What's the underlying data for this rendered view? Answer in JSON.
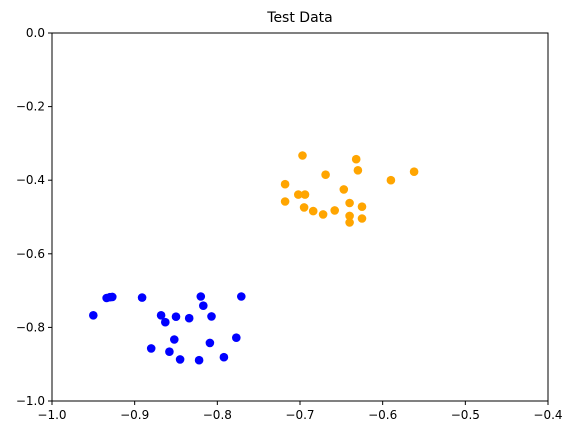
{
  "chart_data": {
    "type": "scatter",
    "title": "Test Data",
    "xlabel": "",
    "ylabel": "",
    "xlim": [
      -1.0,
      -0.4
    ],
    "ylim": [
      -1.0,
      0.0
    ],
    "x_ticks": [
      -1.0,
      -0.9,
      -0.8,
      -0.7,
      -0.6,
      -0.5,
      -0.4
    ],
    "x_tick_labels": [
      "−1.0",
      "−0.9",
      "−0.8",
      "−0.7",
      "−0.6",
      "−0.5",
      "−0.4"
    ],
    "y_ticks": [
      0.0,
      -0.2,
      -0.4,
      -0.6,
      -0.8,
      -1.0
    ],
    "y_tick_labels": [
      "0.0",
      "−0.2",
      "−0.4",
      "−0.6",
      "−0.8",
      "−1.0"
    ],
    "grid": false,
    "series": [
      {
        "color": "#0000ff",
        "points": [
          [
            -0.95,
            -0.767
          ],
          [
            -0.934,
            -0.72
          ],
          [
            -0.93,
            -0.718
          ],
          [
            -0.927,
            -0.717
          ],
          [
            -0.891,
            -0.719
          ],
          [
            -0.88,
            -0.857
          ],
          [
            -0.868,
            -0.767
          ],
          [
            -0.863,
            -0.786
          ],
          [
            -0.858,
            -0.866
          ],
          [
            -0.852,
            -0.833
          ],
          [
            -0.85,
            -0.771
          ],
          [
            -0.845,
            -0.887
          ],
          [
            -0.834,
            -0.775
          ],
          [
            -0.822,
            -0.889
          ],
          [
            -0.82,
            -0.716
          ],
          [
            -0.817,
            -0.741
          ],
          [
            -0.809,
            -0.842
          ],
          [
            -0.807,
            -0.77
          ],
          [
            -0.792,
            -0.881
          ],
          [
            -0.777,
            -0.828
          ],
          [
            -0.771,
            -0.716
          ]
        ]
      },
      {
        "color": "#ffa500",
        "points": [
          [
            -0.718,
            -0.411
          ],
          [
            -0.718,
            -0.458
          ],
          [
            -0.702,
            -0.439
          ],
          [
            -0.697,
            -0.333
          ],
          [
            -0.695,
            -0.474
          ],
          [
            -0.694,
            -0.439
          ],
          [
            -0.684,
            -0.484
          ],
          [
            -0.672,
            -0.493
          ],
          [
            -0.669,
            -0.385
          ],
          [
            -0.658,
            -0.482
          ],
          [
            -0.647,
            -0.425
          ],
          [
            -0.64,
            -0.462
          ],
          [
            -0.64,
            -0.497
          ],
          [
            -0.64,
            -0.515
          ],
          [
            -0.632,
            -0.343
          ],
          [
            -0.63,
            -0.373
          ],
          [
            -0.625,
            -0.472
          ],
          [
            -0.625,
            -0.504
          ],
          [
            -0.59,
            -0.4
          ],
          [
            -0.562,
            -0.377
          ]
        ]
      }
    ]
  }
}
